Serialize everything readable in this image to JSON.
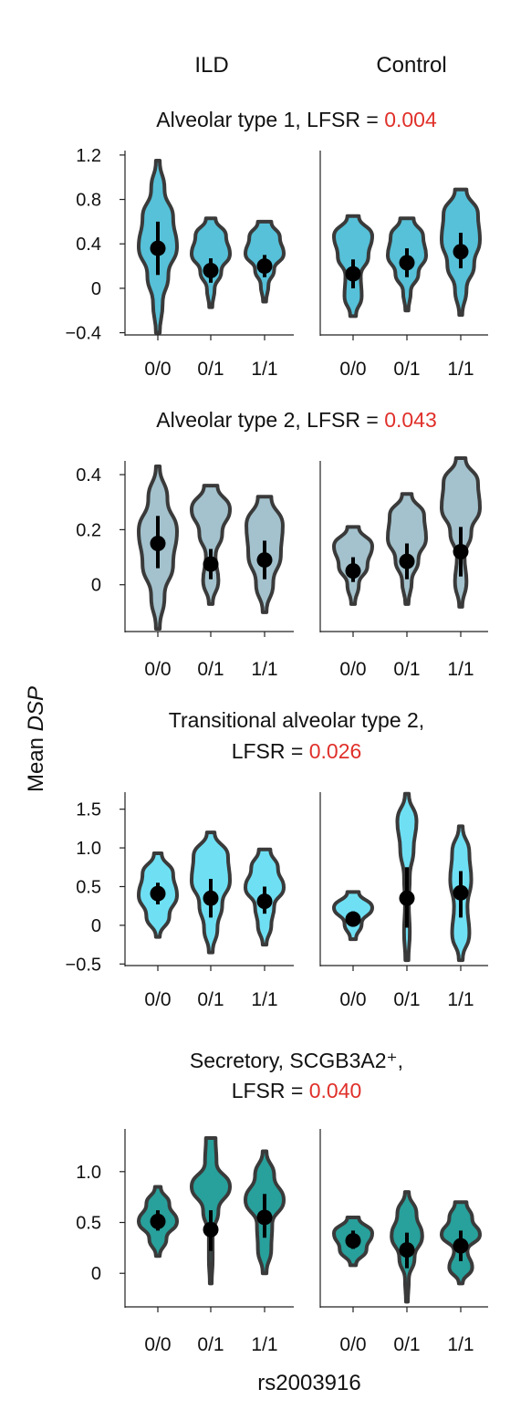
{
  "column_headers": [
    "ILD",
    "Control"
  ],
  "y_axis_label": {
    "prefix": "Mean ",
    "gene": "DSP"
  },
  "x_axis_label": "rs2003916",
  "colors": {
    "lfsr_value": "#e0302a",
    "violin_outline": "#3a3a3a",
    "point": "#000000",
    "panels": [
      "#56c1d9",
      "#a3c2cd",
      "#6fe0f4",
      "#28a09b"
    ]
  },
  "chart_data": [
    {
      "type": "violin",
      "title_lines": [
        [
          "Alveolar type 1, LFSR = ",
          "0.004"
        ]
      ],
      "categories": [
        "0/0",
        "0/1",
        "1/1"
      ],
      "y_ticks": [
        "1.2",
        "0.8",
        "0.4",
        "0",
        "−0.4"
      ],
      "y_tick_values": [
        1.2,
        0.8,
        0.4,
        0,
        -0.4
      ],
      "ylim": [
        -0.42,
        1.24
      ],
      "groups": [
        {
          "name": "ILD",
          "violins": [
            {
              "range": [
                -0.4,
                1.15
              ],
              "mean": 0.36,
              "ci": [
                0.12,
                0.6
              ]
            },
            {
              "range": [
                -0.17,
                0.63
              ],
              "mean": 0.16,
              "ci": [
                0.05,
                0.27
              ]
            },
            {
              "range": [
                -0.12,
                0.6
              ],
              "mean": 0.2,
              "ci": [
                0.1,
                0.3
              ]
            }
          ]
        },
        {
          "name": "Control",
          "violins": [
            {
              "range": [
                -0.25,
                0.65
              ],
              "mean": 0.13,
              "ci": [
                0.0,
                0.26
              ]
            },
            {
              "range": [
                -0.2,
                0.63
              ],
              "mean": 0.23,
              "ci": [
                0.1,
                0.36
              ]
            },
            {
              "range": [
                -0.24,
                0.89
              ],
              "mean": 0.33,
              "ci": [
                0.18,
                0.5
              ]
            }
          ]
        }
      ]
    },
    {
      "type": "violin",
      "title_lines": [
        [
          "Alveolar type 2, LFSR = ",
          "0.043"
        ]
      ],
      "categories": [
        "0/0",
        "0/1",
        "1/1"
      ],
      "y_ticks": [
        "0.4",
        "0.2",
        "0"
      ],
      "y_tick_values": [
        0.4,
        0.2,
        0
      ],
      "ylim": [
        -0.17,
        0.45
      ],
      "groups": [
        {
          "name": "ILD",
          "violins": [
            {
              "range": [
                -0.16,
                0.43
              ],
              "mean": 0.15,
              "ci": [
                0.06,
                0.25
              ]
            },
            {
              "range": [
                -0.07,
                0.36
              ],
              "mean": 0.075,
              "ci": [
                0.02,
                0.13
              ]
            },
            {
              "range": [
                -0.1,
                0.32
              ],
              "mean": 0.09,
              "ci": [
                0.02,
                0.16
              ]
            }
          ]
        },
        {
          "name": "Control",
          "violins": [
            {
              "range": [
                -0.07,
                0.21
              ],
              "mean": 0.05,
              "ci": [
                0.01,
                0.1
              ]
            },
            {
              "range": [
                -0.07,
                0.33
              ],
              "mean": 0.085,
              "ci": [
                0.02,
                0.15
              ]
            },
            {
              "range": [
                -0.08,
                0.46
              ],
              "mean": 0.12,
              "ci": [
                0.03,
                0.21
              ]
            }
          ]
        }
      ]
    },
    {
      "type": "violin",
      "title_lines": [
        [
          "Transitional alveolar type 2,"
        ],
        [
          "LFSR = ",
          "0.026"
        ]
      ],
      "categories": [
        "0/0",
        "0/1",
        "1/1"
      ],
      "y_ticks": [
        "1.5",
        "1.0",
        "0.5",
        "0",
        "−0.5"
      ],
      "y_tick_values": [
        1.5,
        1.0,
        0.5,
        0,
        -0.5
      ],
      "ylim": [
        -0.52,
        1.72
      ],
      "groups": [
        {
          "name": "ILD",
          "violins": [
            {
              "range": [
                -0.15,
                0.93
              ],
              "mean": 0.41,
              "ci": [
                0.27,
                0.55
              ]
            },
            {
              "range": [
                -0.35,
                1.2
              ],
              "mean": 0.35,
              "ci": [
                0.1,
                0.6
              ]
            },
            {
              "range": [
                -0.25,
                0.98
              ],
              "mean": 0.31,
              "ci": [
                0.15,
                0.5
              ]
            }
          ]
        },
        {
          "name": "Control",
          "violins": [
            {
              "range": [
                -0.18,
                0.43
              ],
              "mean": 0.08,
              "ci": [
                0.0,
                0.18
              ]
            },
            {
              "range": [
                -0.45,
                1.7
              ],
              "mean": 0.35,
              "ci": [
                -0.03,
                0.75
              ]
            },
            {
              "range": [
                -0.45,
                1.28
              ],
              "mean": 0.42,
              "ci": [
                0.1,
                0.7
              ]
            }
          ]
        }
      ]
    },
    {
      "type": "violin",
      "title_lines": [
        [
          "Secretory, SCGB3A2⁺,"
        ],
        [
          "LFSR = ",
          "0.040"
        ]
      ],
      "categories": [
        "0/0",
        "0/1",
        "1/1"
      ],
      "y_ticks": [
        "1.0",
        "0.5",
        "0"
      ],
      "y_tick_values": [
        1.0,
        0.5,
        0
      ],
      "ylim": [
        -0.33,
        1.42
      ],
      "groups": [
        {
          "name": "ILD",
          "violins": [
            {
              "range": [
                0.17,
                0.85
              ],
              "mean": 0.51,
              "ci": [
                0.42,
                0.62
              ]
            },
            {
              "range": [
                -0.1,
                1.33
              ],
              "mean": 0.43,
              "ci": [
                0.22,
                0.62
              ]
            },
            {
              "range": [
                0.0,
                1.2
              ],
              "mean": 0.55,
              "ci": [
                0.35,
                0.78
              ]
            }
          ]
        },
        {
          "name": "Control",
          "violins": [
            {
              "range": [
                0.08,
                0.55
              ],
              "mean": 0.32,
              "ci": [
                0.24,
                0.42
              ]
            },
            {
              "range": [
                -0.28,
                0.8
              ],
              "mean": 0.23,
              "ci": [
                0.05,
                0.4
              ]
            },
            {
              "range": [
                -0.1,
                0.7
              ],
              "mean": 0.27,
              "ci": [
                0.12,
                0.42
              ]
            }
          ]
        }
      ]
    }
  ]
}
